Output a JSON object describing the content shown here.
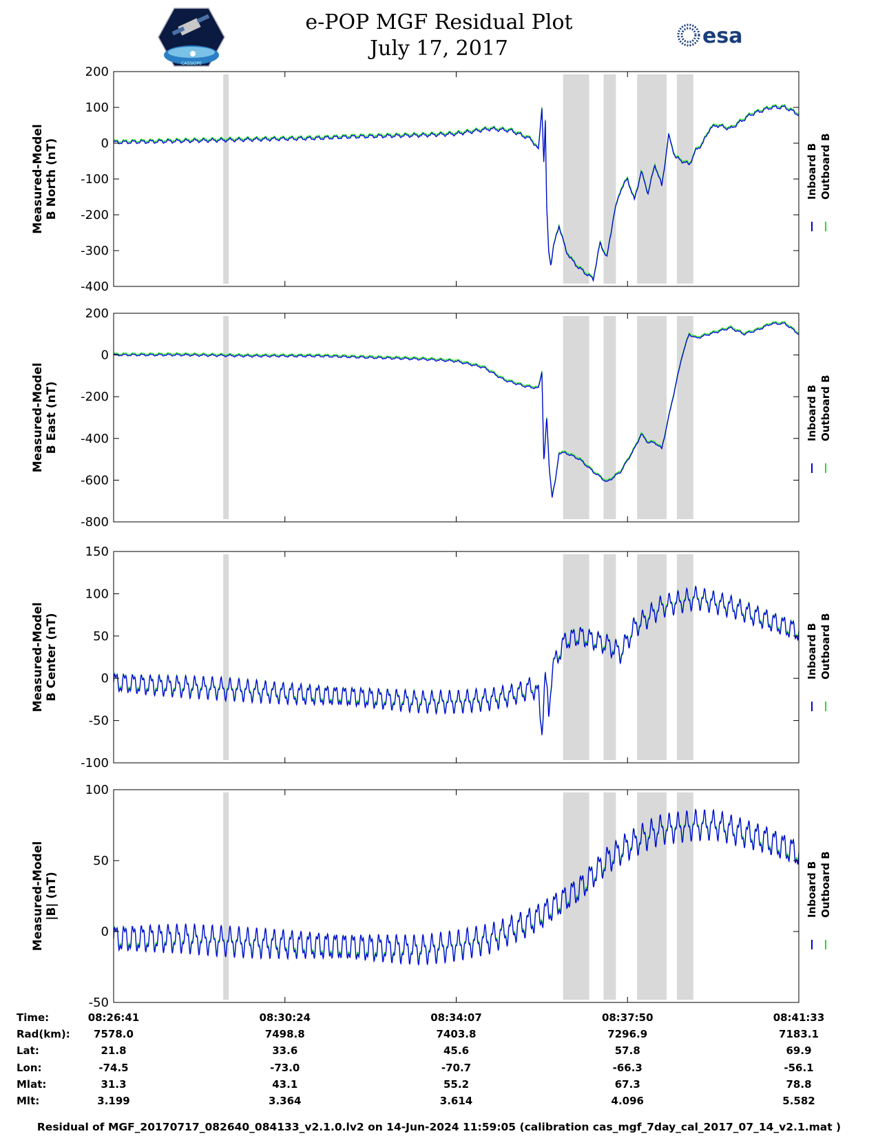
{
  "header": {
    "title_line1": "e-POP MGF Residual Plot",
    "title_line2": "July 17, 2017",
    "logo_left_text": "CASSIOPE",
    "logo_right_text": "esa"
  },
  "colors": {
    "inboard": "#0000dd",
    "outboard": "#22dd22",
    "shade": "#d9d9d9"
  },
  "chart_data": [
    {
      "type": "line",
      "ylabel": [
        "Measured-Model",
        "B North (nT)"
      ],
      "ylim": [
        -400,
        200
      ],
      "yticks": [
        "200",
        "100",
        "0",
        "-100",
        "-200",
        "-300",
        "-400"
      ],
      "ytick_values": [
        200,
        100,
        0,
        -100,
        -200,
        -300,
        -400
      ],
      "legend": [
        "Inboard B",
        "Outboard B"
      ],
      "osc_amp": 4,
      "x": [
        0,
        0.05,
        0.1,
        0.15,
        0.2,
        0.25,
        0.3,
        0.35,
        0.4,
        0.45,
        0.5,
        0.55,
        0.58,
        0.61,
        0.62,
        0.625,
        0.628,
        0.63,
        0.632,
        0.635,
        0.638,
        0.642,
        0.65,
        0.66,
        0.67,
        0.68,
        0.7,
        0.71,
        0.72,
        0.73,
        0.74,
        0.75,
        0.76,
        0.77,
        0.78,
        0.79,
        0.8,
        0.81,
        0.82,
        0.83,
        0.84,
        0.85,
        0.86,
        0.87,
        0.88,
        0.9,
        0.93,
        0.96,
        0.98,
        1.0
      ],
      "y": [
        2,
        4,
        6,
        8,
        10,
        12,
        14,
        18,
        20,
        22,
        26,
        40,
        35,
        10,
        -20,
        100,
        -60,
        60,
        -180,
        -300,
        -340,
        -290,
        -230,
        -300,
        -330,
        -350,
        -380,
        -280,
        -320,
        -200,
        -130,
        -100,
        -160,
        -80,
        -140,
        -60,
        -120,
        20,
        -40,
        -50,
        -60,
        -20,
        0,
        40,
        50,
        40,
        80,
        100,
        100,
        80
      ]
    },
    {
      "type": "line",
      "ylabel": [
        "Measured-Model",
        "B East (nT)"
      ],
      "ylim": [
        -800,
        200
      ],
      "yticks": [
        "200",
        "0",
        "-200",
        "-400",
        "-600",
        "-800"
      ],
      "ytick_values": [
        200,
        0,
        -200,
        -400,
        -600,
        -800
      ],
      "legend": [
        "Inboard B",
        "Outboard B"
      ],
      "osc_amp": 4,
      "x": [
        0,
        0.1,
        0.2,
        0.3,
        0.4,
        0.45,
        0.5,
        0.54,
        0.57,
        0.6,
        0.62,
        0.625,
        0.628,
        0.632,
        0.636,
        0.64,
        0.645,
        0.65,
        0.66,
        0.68,
        0.7,
        0.72,
        0.74,
        0.76,
        0.77,
        0.78,
        0.79,
        0.8,
        0.81,
        0.82,
        0.83,
        0.84,
        0.85,
        0.86,
        0.88,
        0.9,
        0.92,
        0.94,
        0.96,
        0.98,
        1.0
      ],
      "y": [
        0,
        0,
        -5,
        -5,
        -15,
        -20,
        -30,
        -60,
        -120,
        -150,
        -160,
        -80,
        -520,
        -300,
        -550,
        -680,
        -600,
        -470,
        -470,
        -500,
        -560,
        -610,
        -560,
        -450,
        -380,
        -420,
        -420,
        -450,
        -300,
        -150,
        0,
        100,
        80,
        90,
        110,
        130,
        100,
        120,
        150,
        150,
        100
      ]
    },
    {
      "type": "line",
      "ylabel": [
        "Measured-Model",
        "B Center (nT)"
      ],
      "ylim": [
        -100,
        150
      ],
      "yticks": [
        "150",
        "100",
        "50",
        "0",
        "-50",
        "-100"
      ],
      "ytick_values": [
        150,
        100,
        50,
        0,
        -50,
        -100
      ],
      "legend": [
        "Inboard B",
        "Outboard B"
      ],
      "osc_amp": 10,
      "x": [
        0,
        0.05,
        0.1,
        0.15,
        0.2,
        0.25,
        0.3,
        0.35,
        0.4,
        0.45,
        0.5,
        0.55,
        0.58,
        0.6,
        0.61,
        0.62,
        0.625,
        0.63,
        0.635,
        0.64,
        0.65,
        0.66,
        0.68,
        0.7,
        0.72,
        0.74,
        0.76,
        0.8,
        0.85,
        0.9,
        0.95,
        1.0
      ],
      "y": [
        -5,
        -8,
        -10,
        -12,
        -15,
        -18,
        -20,
        -22,
        -25,
        -28,
        -28,
        -25,
        -20,
        -15,
        -10,
        -20,
        -60,
        0,
        -40,
        10,
        30,
        45,
        50,
        45,
        40,
        30,
        60,
        85,
        95,
        85,
        70,
        55
      ]
    },
    {
      "type": "line",
      "ylabel": [
        "Measured-Model",
        "|B| (nT)"
      ],
      "ylim": [
        -50,
        100
      ],
      "yticks": [
        "100",
        "50",
        "0",
        "-50"
      ],
      "ytick_values": [
        100,
        50,
        0,
        -50
      ],
      "legend": [
        "Inboard B",
        "Outboard B"
      ],
      "osc_amp": 8,
      "x": [
        0,
        0.1,
        0.2,
        0.3,
        0.4,
        0.45,
        0.5,
        0.55,
        0.6,
        0.62,
        0.65,
        0.68,
        0.7,
        0.72,
        0.75,
        0.78,
        0.8,
        0.85,
        0.88,
        0.9,
        0.95,
        1.0
      ],
      "y": [
        -5,
        -5,
        -8,
        -10,
        -12,
        -13,
        -10,
        -5,
        5,
        10,
        20,
        30,
        40,
        50,
        60,
        68,
        72,
        75,
        75,
        72,
        65,
        55
      ]
    }
  ],
  "shaded_regions": [
    [
      0.16,
      0.168
    ],
    [
      0.656,
      0.694
    ],
    [
      0.715,
      0.733
    ],
    [
      0.764,
      0.807
    ],
    [
      0.822,
      0.846
    ]
  ],
  "time_table": {
    "row_labels": [
      "Time:",
      "Rad(km):",
      "Lat:",
      "Lon:",
      "Mlat:",
      "Mlt:"
    ],
    "columns": [
      [
        "08:26:41",
        "7578.0",
        "21.8",
        "-74.5",
        "31.3",
        "3.199"
      ],
      [
        "08:30:24",
        "7498.8",
        "33.6",
        "-73.0",
        "43.1",
        "3.364"
      ],
      [
        "08:34:07",
        "7403.8",
        "45.6",
        "-70.7",
        "55.2",
        "3.614"
      ],
      [
        "08:37:50",
        "7296.9",
        "57.8",
        "-66.3",
        "67.3",
        "4.096"
      ],
      [
        "08:41:33",
        "7183.1",
        "69.9",
        "-56.1",
        "78.8",
        "5.582"
      ]
    ]
  },
  "footer": "Residual of MGF_20170717_082640_084133_v2.1.0.lv2 on 14-Jun-2024 11:59:05 (calibration cas_mgf_7day_cal_2017_07_14_v2.1.mat )"
}
